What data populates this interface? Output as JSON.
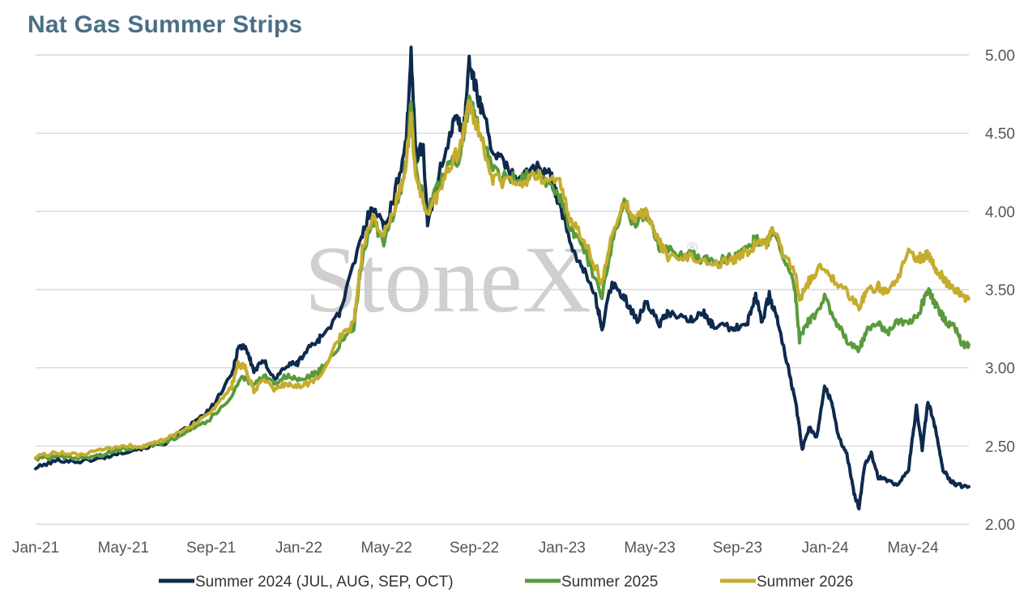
{
  "chart_data": {
    "type": "line",
    "title": "Nat Gas Summer Strips",
    "watermark": "StoneX",
    "watermark_mark": "®",
    "x_tick_labels": [
      "Jan-21",
      "May-21",
      "Sep-21",
      "Jan-22",
      "May-22",
      "Sep-22",
      "Jan-23",
      "May-23",
      "Sep-23",
      "Jan-24",
      "May-24"
    ],
    "y_ticks": [
      "2.00",
      "2.50",
      "3.00",
      "3.50",
      "4.00",
      "4.50",
      "5.00"
    ],
    "ylim": [
      2.0,
      5.0
    ],
    "xlim": [
      "2021-01-01",
      "2024-07-24"
    ],
    "grid": true,
    "legend_position": "bottom",
    "series": [
      {
        "name": "Summer 2024 (JUL, AUG, SEP, OCT)",
        "color": "#0e2a4d",
        "points": [
          [
            "2021-01-01",
            2.36
          ],
          [
            "2021-02-01",
            2.41
          ],
          [
            "2021-03-01",
            2.4
          ],
          [
            "2021-04-01",
            2.42
          ],
          [
            "2021-05-01",
            2.46
          ],
          [
            "2021-06-01",
            2.49
          ],
          [
            "2021-07-01",
            2.52
          ],
          [
            "2021-08-01",
            2.62
          ],
          [
            "2021-09-01",
            2.73
          ],
          [
            "2021-10-01",
            2.95
          ],
          [
            "2021-10-10",
            3.13
          ],
          [
            "2021-10-20",
            3.14
          ],
          [
            "2021-11-01",
            2.98
          ],
          [
            "2021-11-15",
            3.04
          ],
          [
            "2021-12-01",
            2.93
          ],
          [
            "2021-12-15",
            3.01
          ],
          [
            "2022-01-01",
            3.03
          ],
          [
            "2022-01-15",
            3.12
          ],
          [
            "2022-02-01",
            3.19
          ],
          [
            "2022-03-01",
            3.35
          ],
          [
            "2022-04-01",
            3.85
          ],
          [
            "2022-04-15",
            4.05
          ],
          [
            "2022-05-01",
            3.9
          ],
          [
            "2022-05-15",
            4.08
          ],
          [
            "2022-06-01",
            4.45
          ],
          [
            "2022-06-08",
            4.99
          ],
          [
            "2022-06-15",
            4.35
          ],
          [
            "2022-06-25",
            4.42
          ],
          [
            "2022-07-01",
            3.9
          ],
          [
            "2022-07-15",
            4.2
          ],
          [
            "2022-08-01",
            4.5
          ],
          [
            "2022-08-10",
            4.6
          ],
          [
            "2022-08-20",
            4.5
          ],
          [
            "2022-08-28",
            4.97
          ],
          [
            "2022-09-05",
            4.8
          ],
          [
            "2022-09-15",
            4.65
          ],
          [
            "2022-10-01",
            4.38
          ],
          [
            "2022-10-15",
            4.3
          ],
          [
            "2022-11-01",
            4.22
          ],
          [
            "2022-12-01",
            4.28
          ],
          [
            "2022-12-20",
            4.22
          ],
          [
            "2023-01-01",
            4.05
          ],
          [
            "2023-01-15",
            3.8
          ],
          [
            "2023-02-01",
            3.65
          ],
          [
            "2023-02-20",
            3.45
          ],
          [
            "2023-03-01",
            3.25
          ],
          [
            "2023-03-15",
            3.55
          ],
          [
            "2023-04-01",
            3.45
          ],
          [
            "2023-04-20",
            3.3
          ],
          [
            "2023-05-01",
            3.42
          ],
          [
            "2023-05-20",
            3.28
          ],
          [
            "2023-06-01",
            3.35
          ],
          [
            "2023-07-01",
            3.3
          ],
          [
            "2023-07-20",
            3.35
          ],
          [
            "2023-08-01",
            3.28
          ],
          [
            "2023-09-01",
            3.25
          ],
          [
            "2023-09-20",
            3.3
          ],
          [
            "2023-10-01",
            3.47
          ],
          [
            "2023-10-10",
            3.3
          ],
          [
            "2023-10-20",
            3.46
          ],
          [
            "2023-11-01",
            3.3
          ],
          [
            "2023-11-15",
            3.0
          ],
          [
            "2023-11-25",
            2.8
          ],
          [
            "2023-12-05",
            2.48
          ],
          [
            "2023-12-15",
            2.62
          ],
          [
            "2023-12-25",
            2.55
          ],
          [
            "2024-01-05",
            2.88
          ],
          [
            "2024-01-15",
            2.78
          ],
          [
            "2024-01-25",
            2.55
          ],
          [
            "2024-02-05",
            2.45
          ],
          [
            "2024-02-15",
            2.2
          ],
          [
            "2024-02-22",
            2.1
          ],
          [
            "2024-03-01",
            2.38
          ],
          [
            "2024-03-10",
            2.45
          ],
          [
            "2024-03-20",
            2.3
          ],
          [
            "2024-04-01",
            2.28
          ],
          [
            "2024-04-15",
            2.25
          ],
          [
            "2024-05-01",
            2.35
          ],
          [
            "2024-05-12",
            2.75
          ],
          [
            "2024-05-20",
            2.48
          ],
          [
            "2024-05-28",
            2.79
          ],
          [
            "2024-06-08",
            2.6
          ],
          [
            "2024-06-18",
            2.35
          ],
          [
            "2024-06-28",
            2.28
          ],
          [
            "2024-07-08",
            2.25
          ],
          [
            "2024-07-24",
            2.24
          ]
        ]
      },
      {
        "name": "Summer 2025",
        "color": "#5a9a3c",
        "points": [
          [
            "2021-01-01",
            2.42
          ],
          [
            "2021-02-01",
            2.43
          ],
          [
            "2021-03-01",
            2.42
          ],
          [
            "2021-04-01",
            2.44
          ],
          [
            "2021-05-01",
            2.48
          ],
          [
            "2021-06-01",
            2.5
          ],
          [
            "2021-07-01",
            2.52
          ],
          [
            "2021-08-01",
            2.6
          ],
          [
            "2021-09-01",
            2.67
          ],
          [
            "2021-10-01",
            2.82
          ],
          [
            "2021-10-15",
            2.95
          ],
          [
            "2021-11-01",
            2.88
          ],
          [
            "2021-11-15",
            2.95
          ],
          [
            "2021-12-01",
            2.9
          ],
          [
            "2021-12-15",
            2.95
          ],
          [
            "2022-01-01",
            2.92
          ],
          [
            "2022-01-15",
            2.94
          ],
          [
            "2022-02-01",
            2.98
          ],
          [
            "2022-03-01",
            3.15
          ],
          [
            "2022-03-20",
            3.25
          ],
          [
            "2022-04-01",
            3.7
          ],
          [
            "2022-04-15",
            3.95
          ],
          [
            "2022-05-01",
            3.8
          ],
          [
            "2022-05-15",
            3.95
          ],
          [
            "2022-06-01",
            4.3
          ],
          [
            "2022-06-08",
            4.68
          ],
          [
            "2022-06-15",
            4.25
          ],
          [
            "2022-07-01",
            4.0
          ],
          [
            "2022-07-15",
            4.15
          ],
          [
            "2022-08-01",
            4.3
          ],
          [
            "2022-08-15",
            4.35
          ],
          [
            "2022-08-28",
            4.7
          ],
          [
            "2022-09-10",
            4.55
          ],
          [
            "2022-10-01",
            4.25
          ],
          [
            "2022-11-01",
            4.2
          ],
          [
            "2022-12-01",
            4.25
          ],
          [
            "2023-01-01",
            4.1
          ],
          [
            "2023-01-15",
            3.9
          ],
          [
            "2023-02-01",
            3.8
          ],
          [
            "2023-03-01",
            3.45
          ],
          [
            "2023-03-15",
            3.8
          ],
          [
            "2023-04-01",
            4.05
          ],
          [
            "2023-04-15",
            3.9
          ],
          [
            "2023-05-01",
            3.98
          ],
          [
            "2023-05-20",
            3.78
          ],
          [
            "2023-06-01",
            3.75
          ],
          [
            "2023-07-01",
            3.72
          ],
          [
            "2023-08-01",
            3.68
          ],
          [
            "2023-09-01",
            3.7
          ],
          [
            "2023-09-20",
            3.78
          ],
          [
            "2023-10-01",
            3.82
          ],
          [
            "2023-10-15",
            3.78
          ],
          [
            "2023-10-25",
            3.9
          ],
          [
            "2023-11-10",
            3.7
          ],
          [
            "2023-11-25",
            3.5
          ],
          [
            "2023-12-01",
            3.18
          ],
          [
            "2023-12-10",
            3.28
          ],
          [
            "2023-12-20",
            3.32
          ],
          [
            "2024-01-05",
            3.45
          ],
          [
            "2024-01-20",
            3.3
          ],
          [
            "2024-02-05",
            3.18
          ],
          [
            "2024-02-22",
            3.12
          ],
          [
            "2024-03-05",
            3.25
          ],
          [
            "2024-03-20",
            3.28
          ],
          [
            "2024-04-01",
            3.22
          ],
          [
            "2024-04-15",
            3.3
          ],
          [
            "2024-05-01",
            3.28
          ],
          [
            "2024-05-15",
            3.35
          ],
          [
            "2024-05-28",
            3.5
          ],
          [
            "2024-06-10",
            3.38
          ],
          [
            "2024-06-22",
            3.3
          ],
          [
            "2024-07-05",
            3.25
          ],
          [
            "2024-07-15",
            3.15
          ],
          [
            "2024-07-24",
            3.15
          ]
        ]
      },
      {
        "name": "Summer 2026",
        "color": "#c6ac2e",
        "points": [
          [
            "2021-01-01",
            2.43
          ],
          [
            "2021-02-01",
            2.46
          ],
          [
            "2021-03-01",
            2.44
          ],
          [
            "2021-04-01",
            2.47
          ],
          [
            "2021-05-01",
            2.5
          ],
          [
            "2021-06-01",
            2.5
          ],
          [
            "2021-07-01",
            2.54
          ],
          [
            "2021-08-01",
            2.62
          ],
          [
            "2021-09-01",
            2.7
          ],
          [
            "2021-10-01",
            2.88
          ],
          [
            "2021-10-10",
            3.02
          ],
          [
            "2021-10-20",
            3.0
          ],
          [
            "2021-11-01",
            2.85
          ],
          [
            "2021-11-15",
            2.92
          ],
          [
            "2021-12-01",
            2.86
          ],
          [
            "2021-12-15",
            2.9
          ],
          [
            "2022-01-01",
            2.88
          ],
          [
            "2022-01-15",
            2.9
          ],
          [
            "2022-02-01",
            2.94
          ],
          [
            "2022-03-01",
            3.2
          ],
          [
            "2022-03-20",
            3.28
          ],
          [
            "2022-04-01",
            3.75
          ],
          [
            "2022-04-15",
            3.98
          ],
          [
            "2022-05-01",
            3.85
          ],
          [
            "2022-05-15",
            4.0
          ],
          [
            "2022-06-01",
            4.3
          ],
          [
            "2022-06-08",
            4.58
          ],
          [
            "2022-06-15",
            4.2
          ],
          [
            "2022-07-01",
            4.0
          ],
          [
            "2022-07-15",
            4.1
          ],
          [
            "2022-08-01",
            4.3
          ],
          [
            "2022-08-15",
            4.4
          ],
          [
            "2022-08-28",
            4.68
          ],
          [
            "2022-09-10",
            4.5
          ],
          [
            "2022-10-01",
            4.2
          ],
          [
            "2022-11-01",
            4.18
          ],
          [
            "2022-12-01",
            4.22
          ],
          [
            "2023-01-01",
            4.2
          ],
          [
            "2023-01-15",
            3.95
          ],
          [
            "2023-02-01",
            3.85
          ],
          [
            "2023-03-01",
            3.55
          ],
          [
            "2023-03-15",
            3.85
          ],
          [
            "2023-04-01",
            4.08
          ],
          [
            "2023-04-15",
            3.95
          ],
          [
            "2023-05-01",
            4.0
          ],
          [
            "2023-05-20",
            3.8
          ],
          [
            "2023-06-01",
            3.7
          ],
          [
            "2023-07-01",
            3.72
          ],
          [
            "2023-08-01",
            3.65
          ],
          [
            "2023-09-01",
            3.7
          ],
          [
            "2023-09-20",
            3.74
          ],
          [
            "2023-10-01",
            3.8
          ],
          [
            "2023-10-15",
            3.78
          ],
          [
            "2023-10-25",
            3.88
          ],
          [
            "2023-11-10",
            3.72
          ],
          [
            "2023-11-25",
            3.6
          ],
          [
            "2023-12-01",
            3.42
          ],
          [
            "2023-12-10",
            3.52
          ],
          [
            "2023-12-20",
            3.6
          ],
          [
            "2024-01-05",
            3.65
          ],
          [
            "2024-01-20",
            3.55
          ],
          [
            "2024-02-05",
            3.48
          ],
          [
            "2024-02-22",
            3.38
          ],
          [
            "2024-03-05",
            3.5
          ],
          [
            "2024-03-20",
            3.52
          ],
          [
            "2024-04-01",
            3.48
          ],
          [
            "2024-04-15",
            3.55
          ],
          [
            "2024-05-01",
            3.75
          ],
          [
            "2024-05-15",
            3.7
          ],
          [
            "2024-05-28",
            3.72
          ],
          [
            "2024-06-10",
            3.62
          ],
          [
            "2024-06-22",
            3.55
          ],
          [
            "2024-07-05",
            3.5
          ],
          [
            "2024-07-15",
            3.45
          ],
          [
            "2024-07-24",
            3.44
          ]
        ]
      }
    ]
  }
}
